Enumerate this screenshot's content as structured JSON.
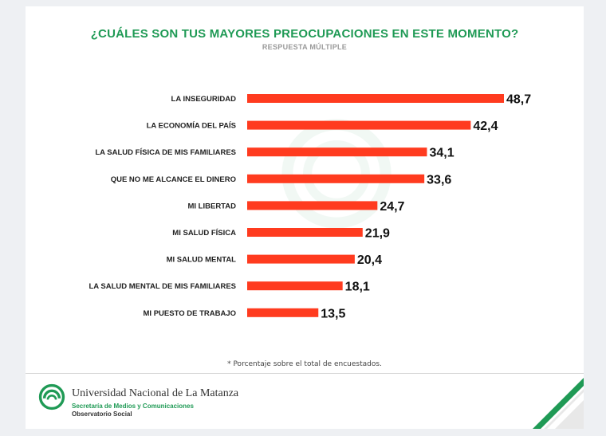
{
  "colors": {
    "bar": "#ff3b1f",
    "title": "#1f9a55",
    "accent": "#1f9a55"
  },
  "header": {
    "title": "¿CUÁLES SON TUS MAYORES PREOCUPACIONES EN ESTE MOMENTO?",
    "subtitle": "RESPUESTA MÚLTIPLE"
  },
  "chart_data": {
    "type": "bar",
    "orientation": "horizontal",
    "title": "¿CUÁLES SON TUS MAYORES PREOCUPACIONES EN ESTE MOMENTO?",
    "subtitle": "RESPUESTA MÚLTIPLE",
    "categories": [
      "LA INSEGURIDAD",
      "LA ECONOMÍA DEL PAÍS",
      "LA SALUD FÍSICA DE MIS FAMILIARES",
      "QUE NO ME ALCANCE EL DINERO",
      "MI LIBERTAD",
      "MI SALUD FÍSICA",
      "MI SALUD MENTAL",
      "LA SALUD MENTAL DE MIS FAMILIARES",
      "MI PUESTO DE TRABAJO"
    ],
    "values": [
      48.7,
      42.4,
      34.1,
      33.6,
      24.7,
      21.9,
      20.4,
      18.1,
      13.5
    ],
    "value_labels": [
      "48,7",
      "42,4",
      "34,1",
      "33,6",
      "24,7",
      "21,9",
      "20,4",
      "18,1",
      "13,5"
    ],
    "xlim": [
      0,
      50
    ],
    "grid": false,
    "legend": "none"
  },
  "footnote": "* Porcentaje sobre el total de encuestados.",
  "footer": {
    "university": "Universidad Nacional de La Matanza",
    "department": "Secretaría de Medios y Comunicaciones",
    "observatory": "Observatorio Social"
  }
}
